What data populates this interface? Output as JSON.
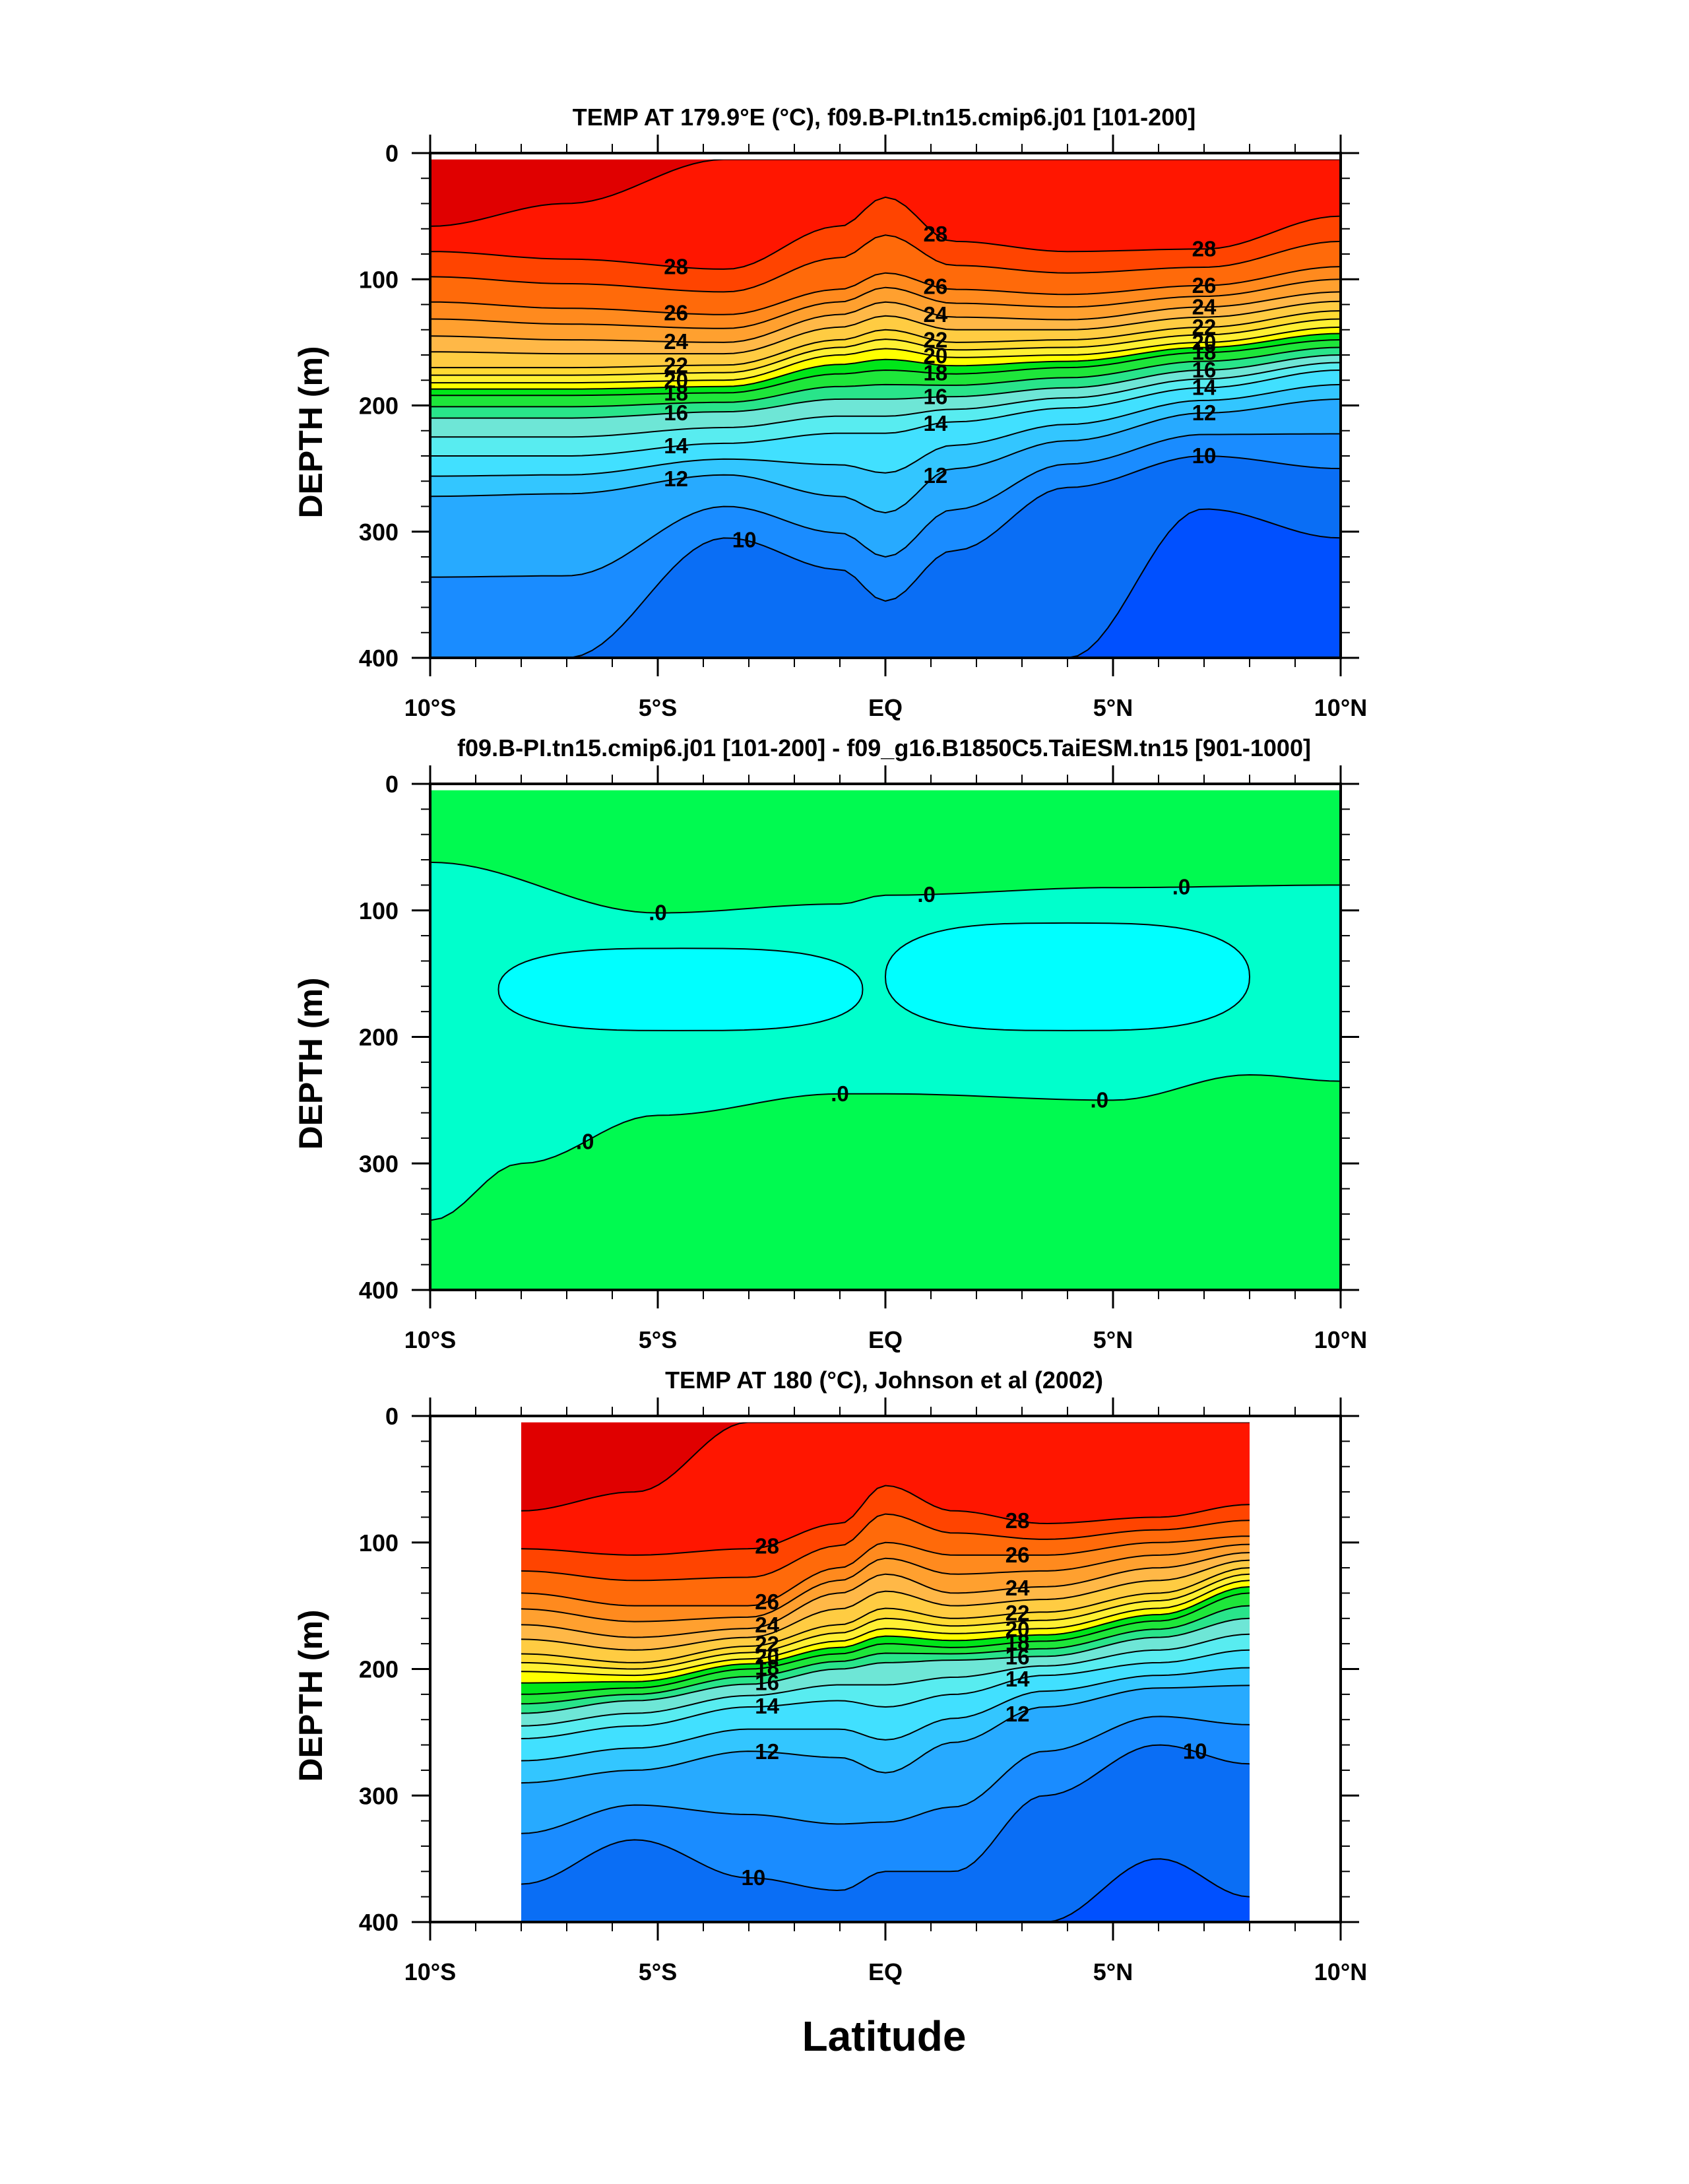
{
  "figure": {
    "xlabel": "Latitude"
  },
  "chart_data": [
    {
      "type": "heatmap",
      "title": "TEMP AT 179.9°E (°C), f09.B-PI.tn15.cmip6.j01 [101-200]",
      "ylabel": "DEPTH (m)",
      "xlabel": "Latitude",
      "xlim": [
        -10,
        10
      ],
      "ylim": [
        400,
        0
      ],
      "x_ticks": [
        "10°S",
        "5°S",
        "EQ",
        "5°N",
        "10°N"
      ],
      "y_ticks": [
        "0",
        "100",
        "200",
        "300",
        "400"
      ],
      "data_extent": {
        "lat": [
          -10,
          10
        ],
        "depth": [
          5,
          400
        ]
      },
      "variable": "temperature",
      "units": "°C",
      "contour_interval": 1,
      "isotherm_depths": {
        "lat": [
          -10,
          -7,
          -3.5,
          -1,
          0,
          1.5,
          4,
          7,
          10
        ],
        "levels": {
          "29": [
            58,
            40,
            5,
            5,
            5,
            5,
            5,
            5,
            5
          ],
          "28": [
            78,
            84,
            92,
            58,
            35,
            70,
            78,
            76,
            50
          ],
          "26": [
            118,
            123,
            128,
            108,
            95,
            108,
            112,
            105,
            90
          ],
          "24": [
            145,
            148,
            150,
            128,
            118,
            130,
            132,
            122,
            110
          ],
          "22": [
            170,
            170,
            168,
            148,
            140,
            150,
            148,
            138,
            125
          ],
          "20": [
            182,
            182,
            180,
            160,
            155,
            162,
            160,
            150,
            138
          ],
          "18": [
            192,
            192,
            190,
            175,
            172,
            175,
            170,
            158,
            148
          ],
          "16": [
            210,
            210,
            205,
            195,
            195,
            193,
            186,
            172,
            160
          ],
          "14": [
            240,
            240,
            230,
            222,
            222,
            213,
            202,
            186,
            172
          ],
          "12": [
            272,
            270,
            255,
            272,
            285,
            250,
            228,
            206,
            195
          ],
          "10": [
            400,
            400,
            305,
            330,
            355,
            315,
            265,
            240,
            250
          ],
          "9": [
            400,
            400,
            400,
            400,
            400,
            400,
            400,
            282,
            305
          ]
        }
      },
      "colorbar_levels_shown": [
        10,
        12,
        14,
        16,
        18,
        20,
        22,
        24,
        26,
        28
      ]
    },
    {
      "type": "heatmap",
      "title": "f09.B-PI.tn15.cmip6.j01 [101-200] - f09_g16.B1850C5.TaiESM.tn15 [901-1000]",
      "ylabel": "DEPTH (m)",
      "xlabel": "Latitude",
      "xlim": [
        -10,
        10
      ],
      "ylim": [
        400,
        0
      ],
      "x_ticks": [
        "10°S",
        "5°S",
        "EQ",
        "5°N",
        "10°N"
      ],
      "y_ticks": [
        "0",
        "100",
        "200",
        "300",
        "400"
      ],
      "data_extent": {
        "lat": [
          -10,
          10
        ],
        "depth": [
          5,
          400
        ]
      },
      "variable": "temperature difference",
      "units": "°C",
      "contour_labels": [
        ".0",
        ".0",
        ".0",
        ".0",
        ".0",
        ".0"
      ],
      "zero_contour_upper": {
        "lat": [
          -10,
          -5,
          -1,
          0,
          5,
          10
        ],
        "depth": [
          62,
          102,
          95,
          88,
          82,
          80
        ]
      },
      "zero_contour_lower": {
        "lat": [
          -10,
          -8,
          -5,
          -1,
          0,
          5,
          8,
          10
        ],
        "depth": [
          345,
          300,
          262,
          245,
          245,
          250,
          230,
          235
        ]
      },
      "negative_regions": [
        {
          "lat": [
            -8.5,
            -0.5
          ],
          "depth": [
            130,
            195
          ]
        },
        {
          "lat": [
            0,
            8
          ],
          "depth": [
            110,
            195
          ]
        }
      ]
    },
    {
      "type": "heatmap",
      "title": "TEMP AT 180 (°C), Johnson et al (2002)",
      "ylabel": "DEPTH (m)",
      "xlabel": "Latitude",
      "xlim": [
        -10,
        10
      ],
      "ylim": [
        400,
        0
      ],
      "x_ticks": [
        "10°S",
        "5°S",
        "EQ",
        "5°N",
        "10°N"
      ],
      "y_ticks": [
        "0",
        "100",
        "200",
        "300",
        "400"
      ],
      "data_extent": {
        "lat": [
          -8,
          8
        ],
        "depth": [
          5,
          400
        ]
      },
      "variable": "temperature",
      "units": "°C",
      "contour_interval": 1,
      "isotherm_depths": {
        "lat": [
          -8,
          -5.5,
          -3,
          -1,
          0,
          1.5,
          3.5,
          6,
          8
        ],
        "levels": {
          "29": [
            75,
            60,
            5,
            5,
            5,
            5,
            5,
            5,
            5
          ],
          "28": [
            105,
            110,
            105,
            85,
            55,
            75,
            85,
            80,
            70
          ],
          "26": [
            140,
            150,
            150,
            120,
            100,
            110,
            110,
            100,
            95
          ],
          "24": [
            165,
            175,
            168,
            140,
            125,
            140,
            135,
            120,
            108
          ],
          "22": [
            188,
            195,
            182,
            165,
            152,
            160,
            155,
            140,
            120
          ],
          "20": [
            202,
            205,
            192,
            178,
            168,
            172,
            168,
            152,
            130
          ],
          "18": [
            220,
            215,
            200,
            188,
            180,
            183,
            178,
            162,
            140
          ],
          "16": [
            235,
            225,
            212,
            200,
            195,
            193,
            190,
            175,
            160
          ],
          "14": [
            255,
            245,
            230,
            225,
            230,
            220,
            205,
            195,
            185
          ],
          "12": [
            290,
            280,
            265,
            270,
            282,
            258,
            230,
            215,
            213
          ],
          "10": [
            370,
            335,
            365,
            375,
            360,
            360,
            300,
            260,
            275
          ],
          "9": [
            400,
            400,
            400,
            400,
            400,
            400,
            400,
            350,
            380
          ]
        }
      },
      "colorbar_levels_shown": [
        10,
        12,
        14,
        16,
        18,
        20,
        22,
        24,
        26,
        28
      ]
    }
  ]
}
